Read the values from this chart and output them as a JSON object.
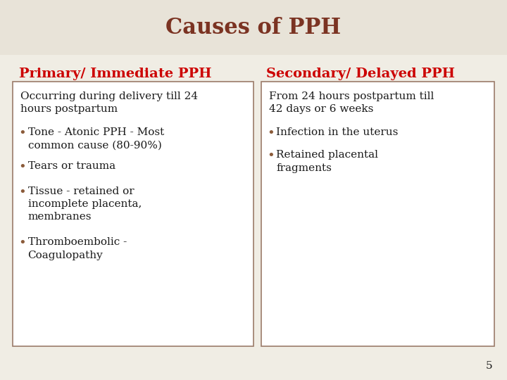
{
  "title": "Causes of PPH",
  "title_color": "#7B3322",
  "title_bg_color": "#E8E3D8",
  "bg_color": "#F0EDE4",
  "col1_header": "Primary/ Immediate PPH",
  "col2_header": "Secondary/ Delayed PPH",
  "header_color": "#CC0000",
  "col1_intro": "Occurring during delivery till 24\nhours postpartum",
  "col1_bullets": [
    "Tone - Atonic PPH - Most\ncommon cause (80-90%)",
    "Tears or trauma",
    "Tissue - retained or\nincomplete placenta,\nmembranes",
    "Thromboembolic -\nCoagulopathy"
  ],
  "col2_intro": "From 24 hours postpartum till\n42 days or 6 weeks",
  "col2_bullets": [
    "Infection in the uterus",
    "Retained placental\nfragments"
  ],
  "text_color": "#1A1A1A",
  "bullet_color": "#8B5B3A",
  "box_border_color": "#9B7B6A",
  "page_number": "5",
  "font_family": "serif",
  "title_fontsize": 22,
  "header_fontsize": 14,
  "body_fontsize": 11,
  "bullet_fontsize": 13
}
